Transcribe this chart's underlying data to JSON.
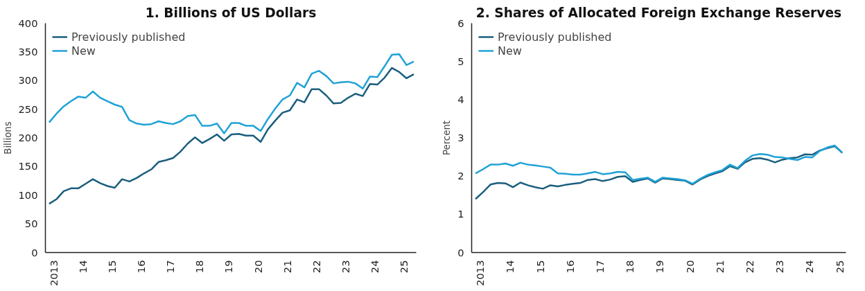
{
  "chart_data": [
    {
      "type": "line",
      "title": "1. Billions of US Dollars",
      "ylabel": "Billions",
      "legend": "top left",
      "grid": false,
      "x": [
        "2013-01",
        "2013-04",
        "2013-07",
        "2013-10",
        "2014-01",
        "2014-04",
        "2014-07",
        "2014-10",
        "2015-01",
        "2015-04",
        "2015-07",
        "2015-10",
        "2016-01",
        "2016-04",
        "2016-07",
        "2016-10",
        "2017-01",
        "2017-04",
        "2017-07",
        "2017-10",
        "2018-01",
        "2018-04",
        "2018-07",
        "2018-10",
        "2019-01",
        "2019-04",
        "2019-07",
        "2019-10",
        "2020-01",
        "2020-04",
        "2020-07",
        "2020-10",
        "2021-01",
        "2021-04",
        "2021-07",
        "2021-10",
        "2022-01",
        "2022-04",
        "2022-07",
        "2022-10",
        "2023-01",
        "2023-04",
        "2023-07",
        "2023-10",
        "2024-01",
        "2024-04",
        "2024-07",
        "2024-10",
        "2025-01",
        "2025-04",
        "2025-07"
      ],
      "xlim": [
        "2012-11-15",
        "2025-08-01"
      ],
      "xticks": [
        {
          "value": "2013-03",
          "label": "2013"
        },
        {
          "value": "2014-03",
          "label": "14"
        },
        {
          "value": "2015-03",
          "label": "15"
        },
        {
          "value": "2016-03",
          "label": "16"
        },
        {
          "value": "2017-03",
          "label": "17"
        },
        {
          "value": "2018-03",
          "label": "18"
        },
        {
          "value": "2019-03",
          "label": "19"
        },
        {
          "value": "2020-03",
          "label": "20"
        },
        {
          "value": "2021-03",
          "label": "21"
        },
        {
          "value": "2022-03",
          "label": "22"
        },
        {
          "value": "2023-03",
          "label": "23"
        },
        {
          "value": "2024-03",
          "label": "24"
        },
        {
          "value": "2025-03",
          "label": "25"
        }
      ],
      "ylim": [
        0,
        400
      ],
      "yticks": [
        0,
        50,
        100,
        150,
        200,
        250,
        300,
        350,
        400
      ],
      "series": [
        {
          "name": "Previously published",
          "color": "#1a5e7e",
          "values": [
            85,
            93,
            107,
            112,
            112,
            120,
            128,
            121,
            116,
            113,
            128,
            124,
            130,
            138,
            145,
            158,
            161,
            165,
            176,
            190,
            201,
            191,
            198,
            206,
            195,
            206,
            207,
            204,
            204,
            193,
            215,
            230,
            244,
            248,
            267,
            262,
            285,
            285,
            274,
            260,
            261,
            270,
            277,
            273,
            294,
            293,
            305,
            322,
            315,
            304,
            311
          ]
        },
        {
          "name": "New",
          "color": "#1fa2d6",
          "values": [
            227,
            242,
            255,
            264,
            272,
            270,
            281,
            270,
            264,
            258,
            254,
            231,
            225,
            223,
            224,
            229,
            226,
            224,
            229,
            238,
            240,
            221,
            221,
            225,
            208,
            226,
            226,
            221,
            221,
            212,
            233,
            251,
            267,
            274,
            296,
            288,
            312,
            317,
            308,
            295,
            297,
            298,
            295,
            286,
            307,
            306,
            325,
            345,
            346,
            327,
            333
          ]
        }
      ]
    },
    {
      "type": "line",
      "title": "2. Shares of Allocated Foreign Exchange Reserves",
      "ylabel": "Percent",
      "legend": "top left",
      "grid": false,
      "x": [
        "2013-01",
        "2013-04",
        "2013-07",
        "2013-10",
        "2014-01",
        "2014-04",
        "2014-07",
        "2014-10",
        "2015-01",
        "2015-04",
        "2015-07",
        "2015-10",
        "2016-01",
        "2016-04",
        "2016-07",
        "2016-10",
        "2017-01",
        "2017-04",
        "2017-07",
        "2017-10",
        "2018-01",
        "2018-04",
        "2018-07",
        "2018-10",
        "2019-01",
        "2019-04",
        "2019-07",
        "2019-10",
        "2020-01",
        "2020-04",
        "2020-07",
        "2020-10",
        "2021-01",
        "2021-04",
        "2021-07",
        "2021-10",
        "2022-01",
        "2022-04",
        "2022-07",
        "2022-10",
        "2023-01",
        "2023-04",
        "2023-07",
        "2023-10",
        "2024-01",
        "2024-04",
        "2024-07",
        "2024-10",
        "2025-01",
        "2025-04"
      ],
      "xlim": [
        "2012-11-15",
        "2025-05-15"
      ],
      "xticks": [
        {
          "value": "2013-03",
          "label": "2013"
        },
        {
          "value": "2014-03",
          "label": "14"
        },
        {
          "value": "2015-03",
          "label": "15"
        },
        {
          "value": "2016-03",
          "label": "16"
        },
        {
          "value": "2017-03",
          "label": "17"
        },
        {
          "value": "2018-03",
          "label": "18"
        },
        {
          "value": "2019-03",
          "label": "19"
        },
        {
          "value": "2020-03",
          "label": "20"
        },
        {
          "value": "2021-03",
          "label": "21"
        },
        {
          "value": "2022-03",
          "label": "22"
        },
        {
          "value": "2023-03",
          "label": "23"
        },
        {
          "value": "2024-03",
          "label": "24"
        },
        {
          "value": "2025-03",
          "label": "25"
        }
      ],
      "ylim": [
        0,
        6
      ],
      "yticks": [
        0,
        1,
        2,
        3,
        4,
        5,
        6
      ],
      "series": [
        {
          "name": "Previously published",
          "color": "#1a5e7e",
          "values": [
            1.4,
            1.58,
            1.78,
            1.82,
            1.81,
            1.71,
            1.83,
            1.76,
            1.71,
            1.67,
            1.76,
            1.73,
            1.77,
            1.8,
            1.82,
            1.9,
            1.92,
            1.87,
            1.91,
            1.98,
            2.0,
            1.85,
            1.9,
            1.94,
            1.83,
            1.94,
            1.92,
            1.9,
            1.88,
            1.78,
            1.91,
            2.0,
            2.07,
            2.13,
            2.26,
            2.19,
            2.36,
            2.45,
            2.47,
            2.43,
            2.36,
            2.43,
            2.47,
            2.49,
            2.57,
            2.56,
            2.67,
            2.73,
            2.78,
            2.61
          ]
        },
        {
          "name": "New",
          "color": "#1fa2d6",
          "values": [
            2.07,
            2.18,
            2.3,
            2.3,
            2.33,
            2.27,
            2.35,
            2.3,
            2.28,
            2.25,
            2.22,
            2.07,
            2.06,
            2.04,
            2.04,
            2.07,
            2.11,
            2.05,
            2.07,
            2.11,
            2.1,
            1.9,
            1.93,
            1.96,
            1.85,
            1.96,
            1.94,
            1.92,
            1.89,
            1.8,
            1.93,
            2.03,
            2.1,
            2.16,
            2.3,
            2.21,
            2.4,
            2.54,
            2.58,
            2.56,
            2.5,
            2.49,
            2.45,
            2.42,
            2.5,
            2.49,
            2.66,
            2.75,
            2.8,
            2.61
          ]
        }
      ]
    }
  ]
}
